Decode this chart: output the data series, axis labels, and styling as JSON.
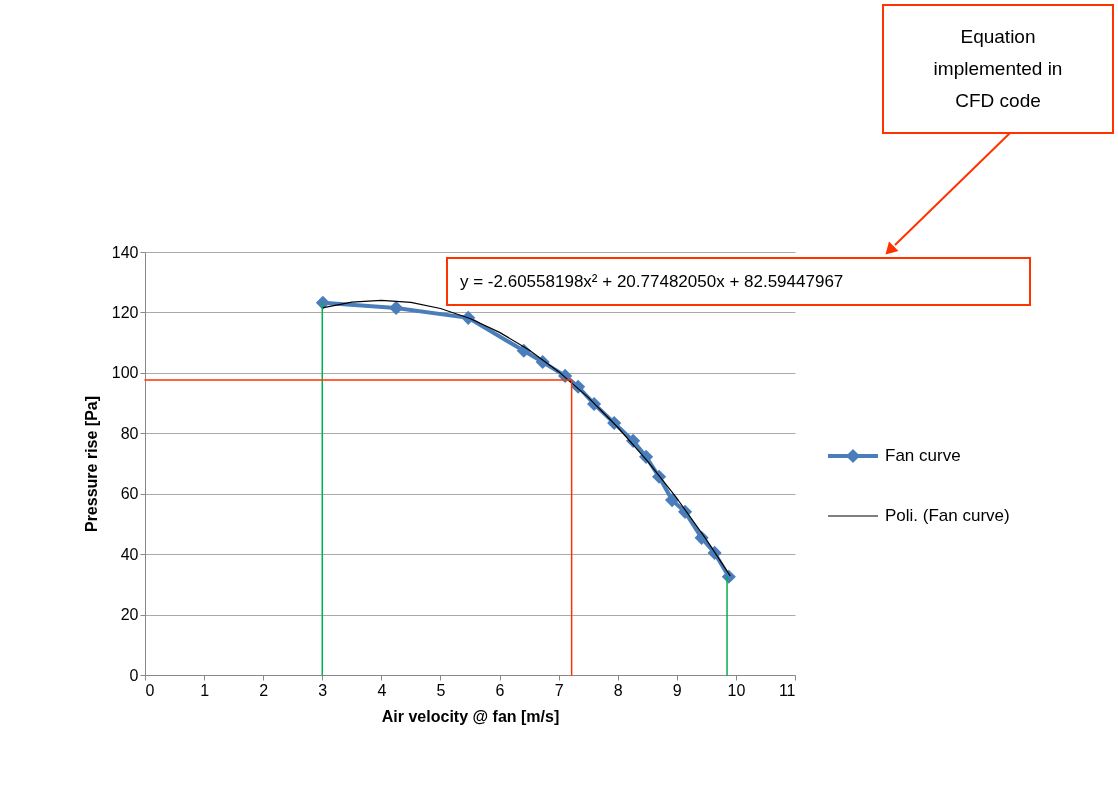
{
  "chart_data": {
    "type": "line",
    "xlabel": "Air velocity @ fan [m/s]",
    "ylabel": "Pressure rise [Pa]",
    "xlim": [
      0,
      11
    ],
    "xticks": [
      0,
      1,
      2,
      3,
      4,
      5,
      6,
      7,
      8,
      9,
      10,
      11
    ],
    "ylim": [
      0,
      140
    ],
    "yticks": [
      0,
      20,
      40,
      60,
      80,
      100,
      120,
      140
    ],
    "grid": "y",
    "legend": "right",
    "series": [
      {
        "name": "Fan curve",
        "color": "#4a7ebb",
        "marker": "diamond",
        "x": [
          3.01,
          4.25,
          5.47,
          6.41,
          6.73,
          7.11,
          7.33,
          7.6,
          7.94,
          8.26,
          8.48,
          8.7,
          8.92,
          9.14,
          9.42,
          9.64,
          9.88
        ],
        "values": [
          123.2,
          121.5,
          118.2,
          107.3,
          103.6,
          99.0,
          95.4,
          89.7,
          83.4,
          77.5,
          72.2,
          65.6,
          57.9,
          54.0,
          45.4,
          40.4,
          32.5
        ]
      },
      {
        "name": "Poli. (Fan curve)",
        "color": "#000000",
        "marker": "none",
        "x": [
          3.0,
          3.5,
          4.0,
          4.5,
          5.0,
          5.5,
          6.0,
          6.5,
          7.0,
          7.5,
          8.0,
          8.5,
          9.0,
          9.5,
          9.9
        ],
        "values": [
          121.5,
          123.4,
          124.0,
          123.3,
          121.3,
          118.0,
          113.4,
          107.6,
          100.4,
          91.9,
          82.0,
          70.9,
          58.5,
          44.8,
          32.9
        ]
      },
      {
        "color": "#00b050",
        "marker": "none",
        "x": [
          3.0,
          3.0
        ],
        "values": [
          0,
          123.2
        ]
      },
      {
        "color": "#00b050",
        "marker": "none",
        "x": [
          9.85,
          9.85
        ],
        "values": [
          0,
          32.5
        ]
      },
      {
        "color": "#ff3300",
        "marker": "none",
        "x": [
          0,
          7.22,
          7.22
        ],
        "values": [
          97.6,
          97.6,
          0
        ]
      }
    ],
    "annotations": [
      "y = -2.60558198x² + 20.77482050x + 82.59447967",
      "Equation implemented in CFD code"
    ]
  }
}
